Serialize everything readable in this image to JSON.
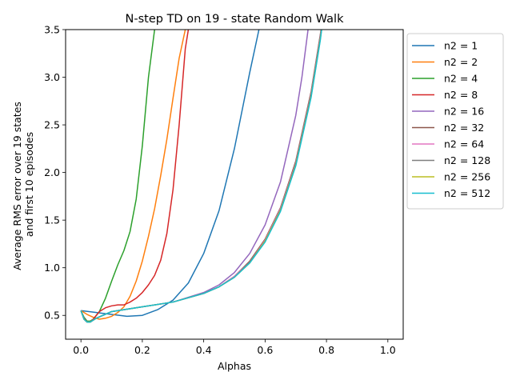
{
  "chart_data": {
    "type": "line",
    "title": "N-step TD on 19 - state Random Walk",
    "xlabel": "Alphas",
    "ylabel": [
      "Average RMS error over 19 states",
      "and first 10 episodes"
    ],
    "xlim": [
      -0.05,
      1.05
    ],
    "ylim": [
      0.25,
      3.5
    ],
    "xticks": [
      0.0,
      0.2,
      0.4,
      0.6,
      0.8,
      1.0
    ],
    "xtick_labels": [
      "0.0",
      "0.2",
      "0.4",
      "0.6",
      "0.8",
      "1.0"
    ],
    "yticks": [
      0.5,
      1.0,
      1.5,
      2.0,
      2.5,
      3.0,
      3.5
    ],
    "ytick_labels": [
      "0.5",
      "1.0",
      "1.5",
      "2.0",
      "2.5",
      "3.0",
      "3.5"
    ],
    "grid": false,
    "legend_position": "outside-right",
    "series": [
      {
        "name": "n2 = 1",
        "color": "#1f77b4",
        "x": [
          0.0,
          0.05,
          0.1,
          0.15,
          0.2,
          0.25,
          0.3,
          0.35,
          0.4,
          0.45,
          0.5,
          0.55,
          0.58,
          0.6
        ],
        "y": [
          0.55,
          0.53,
          0.51,
          0.49,
          0.5,
          0.56,
          0.66,
          0.84,
          1.15,
          1.6,
          2.25,
          3.05,
          3.5,
          3.9
        ]
      },
      {
        "name": "n2 = 2",
        "color": "#ff7f0e",
        "x": [
          0.0,
          0.02,
          0.04,
          0.06,
          0.08,
          0.1,
          0.12,
          0.14,
          0.16,
          0.18,
          0.2,
          0.22,
          0.24,
          0.26,
          0.28,
          0.3,
          0.32,
          0.34,
          0.35,
          0.36
        ],
        "y": [
          0.55,
          0.51,
          0.48,
          0.46,
          0.47,
          0.49,
          0.53,
          0.59,
          0.7,
          0.86,
          1.07,
          1.33,
          1.62,
          1.97,
          2.35,
          2.78,
          3.2,
          3.5,
          3.7,
          3.9
        ]
      },
      {
        "name": "n2 = 4",
        "color": "#2ca02c",
        "x": [
          0.0,
          0.01,
          0.02,
          0.03,
          0.04,
          0.06,
          0.08,
          0.1,
          0.12,
          0.14,
          0.16,
          0.18,
          0.2,
          0.22,
          0.24,
          0.25,
          0.26
        ],
        "y": [
          0.55,
          0.48,
          0.44,
          0.44,
          0.46,
          0.54,
          0.68,
          0.86,
          1.03,
          1.18,
          1.38,
          1.72,
          2.28,
          3.0,
          3.5,
          3.7,
          3.9
        ]
      },
      {
        "name": "n2 = 8",
        "color": "#d62728",
        "x": [
          0.0,
          0.01,
          0.02,
          0.03,
          0.04,
          0.05,
          0.06,
          0.08,
          0.1,
          0.12,
          0.14,
          0.16,
          0.18,
          0.2,
          0.22,
          0.24,
          0.26,
          0.28,
          0.3,
          0.32,
          0.34,
          0.35,
          0.36
        ],
        "y": [
          0.55,
          0.47,
          0.43,
          0.43,
          0.46,
          0.5,
          0.54,
          0.58,
          0.6,
          0.61,
          0.61,
          0.64,
          0.68,
          0.74,
          0.82,
          0.92,
          1.08,
          1.36,
          1.82,
          2.5,
          3.3,
          3.5,
          3.9
        ]
      },
      {
        "name": "n2 = 16",
        "color": "#9467bd",
        "x": [
          0.0,
          0.01,
          0.02,
          0.03,
          0.05,
          0.1,
          0.2,
          0.3,
          0.4,
          0.45,
          0.5,
          0.55,
          0.6,
          0.65,
          0.7,
          0.72,
          0.74,
          0.75
        ],
        "y": [
          0.55,
          0.46,
          0.43,
          0.43,
          0.47,
          0.54,
          0.59,
          0.64,
          0.74,
          0.82,
          0.95,
          1.15,
          1.45,
          1.9,
          2.6,
          3.0,
          3.5,
          3.8
        ]
      },
      {
        "name": "n2 = 32",
        "color": "#8c564b",
        "x": [
          0.0,
          0.01,
          0.02,
          0.03,
          0.05,
          0.1,
          0.2,
          0.3,
          0.4,
          0.45,
          0.5,
          0.55,
          0.6,
          0.65,
          0.7,
          0.75,
          0.78,
          0.8
        ],
        "y": [
          0.55,
          0.46,
          0.43,
          0.43,
          0.47,
          0.54,
          0.59,
          0.64,
          0.73,
          0.8,
          0.91,
          1.07,
          1.3,
          1.63,
          2.12,
          2.85,
          3.45,
          3.9
        ]
      },
      {
        "name": "n2 = 64",
        "color": "#e377c2",
        "x": [
          0.0,
          0.01,
          0.02,
          0.03,
          0.05,
          0.1,
          0.2,
          0.3,
          0.4,
          0.45,
          0.5,
          0.55,
          0.6,
          0.65,
          0.7,
          0.75,
          0.78,
          0.8
        ],
        "y": [
          0.55,
          0.46,
          0.43,
          0.43,
          0.47,
          0.54,
          0.59,
          0.64,
          0.73,
          0.8,
          0.91,
          1.06,
          1.29,
          1.62,
          2.1,
          2.83,
          3.43,
          3.9
        ]
      },
      {
        "name": "n2 = 128",
        "color": "#7f7f7f",
        "x": [
          0.0,
          0.01,
          0.02,
          0.03,
          0.05,
          0.1,
          0.2,
          0.3,
          0.4,
          0.45,
          0.5,
          0.55,
          0.6,
          0.65,
          0.7,
          0.75,
          0.78,
          0.8
        ],
        "y": [
          0.55,
          0.46,
          0.43,
          0.43,
          0.47,
          0.54,
          0.59,
          0.64,
          0.73,
          0.8,
          0.9,
          1.06,
          1.28,
          1.61,
          2.09,
          2.82,
          3.42,
          3.9
        ]
      },
      {
        "name": "n2 = 256",
        "color": "#bcbd22",
        "x": [
          0.0,
          0.01,
          0.02,
          0.03,
          0.05,
          0.1,
          0.2,
          0.3,
          0.4,
          0.45,
          0.5,
          0.55,
          0.6,
          0.65,
          0.7,
          0.75,
          0.78,
          0.8
        ],
        "y": [
          0.55,
          0.46,
          0.43,
          0.43,
          0.47,
          0.54,
          0.59,
          0.64,
          0.73,
          0.8,
          0.9,
          1.05,
          1.28,
          1.6,
          2.08,
          2.8,
          3.4,
          3.9
        ]
      },
      {
        "name": "n2 = 512",
        "color": "#17becf",
        "x": [
          0.0,
          0.01,
          0.02,
          0.03,
          0.05,
          0.1,
          0.2,
          0.3,
          0.4,
          0.45,
          0.5,
          0.55,
          0.6,
          0.65,
          0.7,
          0.75,
          0.78,
          0.8
        ],
        "y": [
          0.55,
          0.46,
          0.43,
          0.43,
          0.47,
          0.54,
          0.59,
          0.64,
          0.73,
          0.8,
          0.9,
          1.05,
          1.27,
          1.59,
          2.07,
          2.79,
          3.39,
          3.9
        ]
      }
    ]
  }
}
